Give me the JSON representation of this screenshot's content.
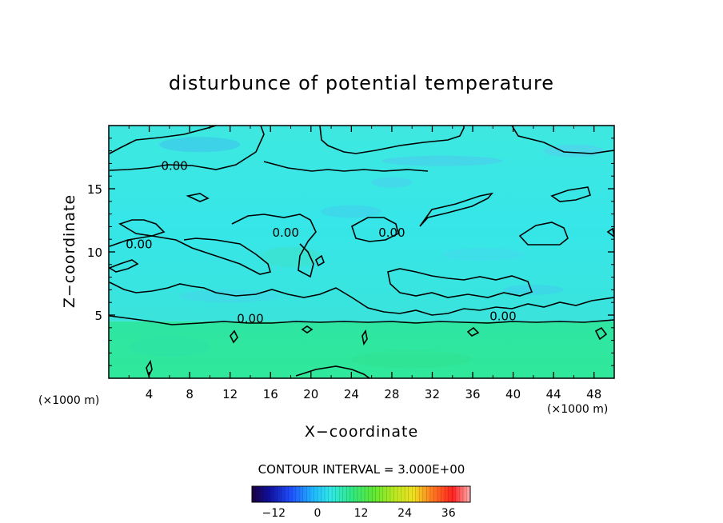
{
  "chart_data": {
    "type": "heatmap",
    "title": "disturbunce of potential temperature",
    "xlabel": "X−coordinate",
    "ylabel": "Z−coordinate",
    "x_unit": "(×1000 m)",
    "y_unit": "(×1000 m)",
    "xlim": [
      0,
      50
    ],
    "ylim": [
      0,
      20
    ],
    "x_ticks": [
      4,
      8,
      12,
      16,
      20,
      24,
      28,
      32,
      36,
      40,
      44,
      48
    ],
    "y_ticks": [
      5,
      10,
      15
    ],
    "contour_interval_text": "CONTOUR INTERVAL = 3.000E+00",
    "contour_labels": [
      {
        "text": "0.00",
        "x": 6.5,
        "y": 16.5
      },
      {
        "text": "0.00",
        "x": 3.0,
        "y": 10.3
      },
      {
        "text": "0.00",
        "x": 17.5,
        "y": 11.2
      },
      {
        "text": "0.00",
        "x": 28.0,
        "y": 11.2
      },
      {
        "text": "0.00",
        "x": 14.0,
        "y": 4.4
      },
      {
        "text": "0.00",
        "x": 39.0,
        "y": 4.6
      }
    ],
    "field_description": {
      "upper_layer_range_km": [
        4.5,
        20
      ],
      "upper_layer_value": -3,
      "lower_layer_range_km": [
        0,
        4.5
      ],
      "lower_layer_value": 3
    },
    "colorbar": {
      "min": -18,
      "max": 42,
      "tick_values": [
        -12,
        0,
        12,
        24,
        36
      ],
      "tick_labels": [
        "−12",
        "0",
        "12",
        "24",
        "36"
      ]
    },
    "grid": false
  }
}
